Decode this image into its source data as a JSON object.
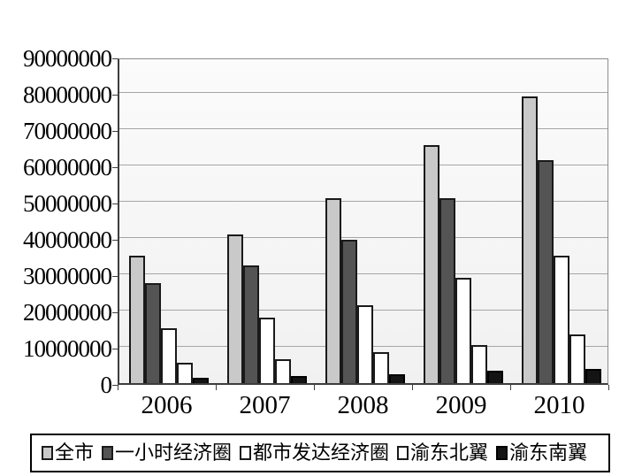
{
  "chart_data": {
    "type": "bar",
    "title": "",
    "xlabel": "",
    "ylabel": "",
    "categories": [
      "2006",
      "2007",
      "2008",
      "2009",
      "2010"
    ],
    "series": [
      {
        "name": "全市",
        "fill": "#c9c9c9",
        "border": "#1a1a1a",
        "values": [
          35000000,
          41000000,
          51000000,
          65500000,
          79000000
        ]
      },
      {
        "name": "一小时经济圈",
        "fill": "#545454",
        "border": "#1a1a1a",
        "values": [
          27500000,
          32500000,
          39500000,
          51000000,
          61500000
        ]
      },
      {
        "name": "都市发达经济圈",
        "fill": "#ffffff",
        "border": "#1a1a1a",
        "values": [
          15000000,
          18000000,
          21500000,
          29000000,
          35000000
        ]
      },
      {
        "name": "渝东北翼",
        "fill": "#ffffff",
        "border": "#1a1a1a",
        "values": [
          5500000,
          6500000,
          8500000,
          10500000,
          13500000
        ]
      },
      {
        "name": "渝东南翼",
        "fill": "#141414",
        "border": "#000000",
        "values": [
          1500000,
          2000000,
          2500000,
          3500000,
          4000000
        ]
      }
    ],
    "ylim": [
      0,
      90000000
    ],
    "ytick_step": 10000000,
    "ytick_labels": [
      "0",
      "10000000",
      "20000000",
      "30000000",
      "40000000",
      "50000000",
      "60000000",
      "70000000",
      "80000000",
      "90000000"
    ],
    "grid": true,
    "gridline_color": "#a6a6a6",
    "plot_background": "#f6f6f6",
    "legend_position": "bottom"
  }
}
